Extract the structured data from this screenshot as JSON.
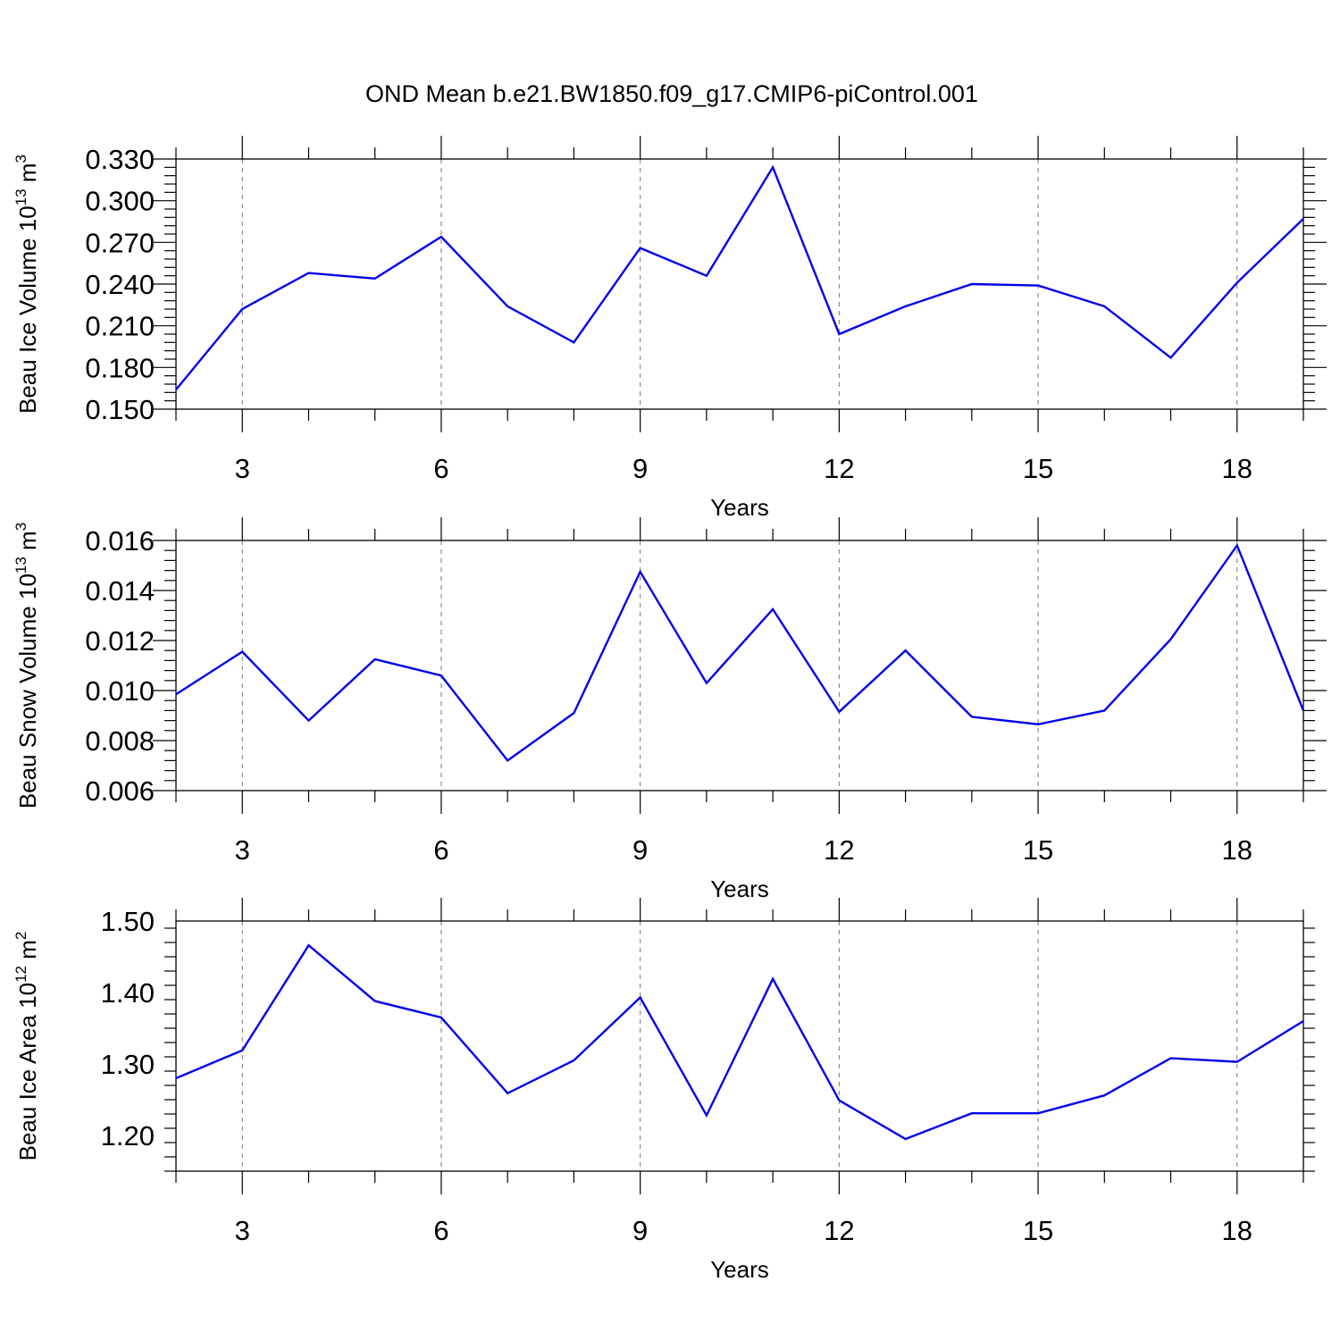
{
  "title": "OND Mean b.e21.BW1850.f09_g17.CMIP6-piControl.001",
  "line_color": "#0000ee",
  "chart_data": [
    {
      "type": "line",
      "xlabel": "Years",
      "ylabel": {
        "text": "Beau Ice Volume 10",
        "sup": "13",
        "unit": " m",
        "unit_sup": "3"
      },
      "xlim": [
        2,
        19
      ],
      "ylim": [
        0.15,
        0.33
      ],
      "x_ticks": [
        3,
        6,
        9,
        12,
        15,
        18
      ],
      "y_ticks": [
        "0.150",
        "0.180",
        "0.210",
        "0.240",
        "0.270",
        "0.300",
        "0.330"
      ],
      "y_tick_values": [
        0.15,
        0.18,
        0.21,
        0.24,
        0.27,
        0.3,
        0.33
      ],
      "x": [
        2,
        3,
        4,
        5,
        6,
        7,
        8,
        9,
        10,
        11,
        12,
        13,
        14,
        15,
        16,
        17,
        18,
        19
      ],
      "values": [
        0.164,
        0.222,
        0.248,
        0.244,
        0.274,
        0.224,
        0.198,
        0.266,
        0.246,
        0.324,
        0.204,
        0.224,
        0.24,
        0.239,
        0.224,
        0.187,
        0.241,
        0.287
      ]
    },
    {
      "type": "line",
      "xlabel": "Years",
      "ylabel": {
        "text": "Beau Snow Volume 10",
        "sup": "13",
        "unit": " m",
        "unit_sup": "3"
      },
      "xlim": [
        2,
        19
      ],
      "ylim": [
        0.006,
        0.016
      ],
      "x_ticks": [
        3,
        6,
        9,
        12,
        15,
        18
      ],
      "y_ticks": [
        "0.006",
        "0.008",
        "0.010",
        "0.012",
        "0.014",
        "0.016"
      ],
      "y_tick_values": [
        0.006,
        0.008,
        0.01,
        0.012,
        0.014,
        0.016
      ],
      "x": [
        2,
        3,
        4,
        5,
        6,
        7,
        8,
        9,
        10,
        11,
        12,
        13,
        14,
        15,
        16,
        17,
        18,
        19
      ],
      "values": [
        0.00985,
        0.01155,
        0.0088,
        0.01125,
        0.0106,
        0.0072,
        0.0091,
        0.01475,
        0.0103,
        0.01325,
        0.00915,
        0.0116,
        0.00895,
        0.00865,
        0.0092,
        0.01205,
        0.0158,
        0.0092
      ]
    },
    {
      "type": "line",
      "xlabel": "Years",
      "ylabel": {
        "text": "Beau Ice Area 10",
        "sup": "12",
        "unit": " m",
        "unit_sup": "2"
      },
      "xlim": [
        2,
        19
      ],
      "ylim": [
        1.15,
        1.5
      ],
      "x_ticks": [
        3,
        6,
        9,
        12,
        15,
        18
      ],
      "y_ticks": [
        "1.20",
        "1.30",
        "1.40",
        "1.50"
      ],
      "y_tick_values": [
        1.2,
        1.3,
        1.4,
        1.5
      ],
      "x": [
        2,
        3,
        4,
        5,
        6,
        7,
        8,
        9,
        10,
        11,
        12,
        13,
        14,
        15,
        16,
        17,
        18,
        19
      ],
      "values": [
        1.28,
        1.319,
        1.466,
        1.388,
        1.365,
        1.259,
        1.305,
        1.393,
        1.228,
        1.419,
        1.249,
        1.195,
        1.231,
        1.231,
        1.256,
        1.308,
        1.303,
        1.36
      ]
    }
  ]
}
